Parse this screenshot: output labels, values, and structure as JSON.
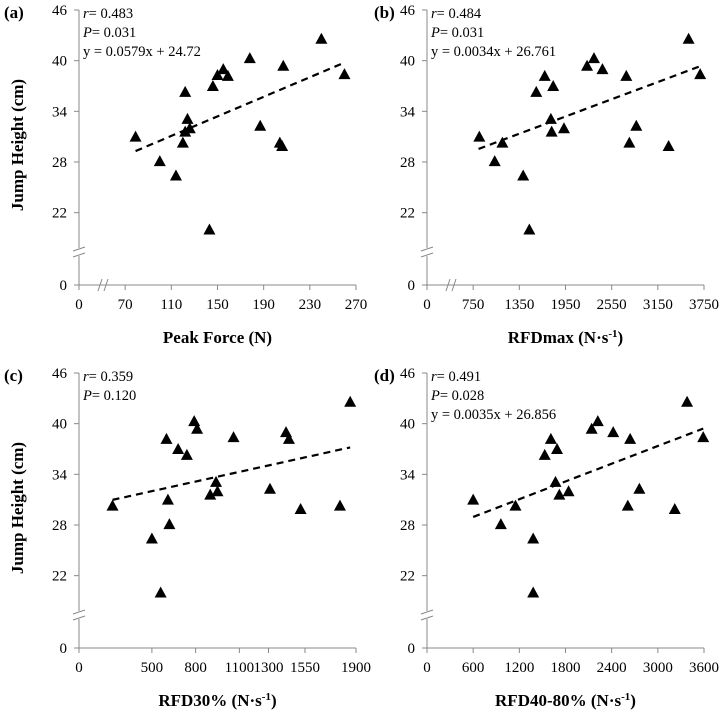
{
  "figure": {
    "ylabel": "Jump Height (cm)"
  },
  "chart_data": [
    {
      "type": "scatter",
      "panel": "(a)",
      "xlabel": "Peak Force (N)",
      "xlabel_sup": "",
      "xlabel_tail": "",
      "xlim": [
        0,
        270
      ],
      "xticks": [
        0,
        70,
        110,
        150,
        190,
        230,
        270
      ],
      "axis_break_after": 0,
      "ylim": [
        0,
        46
      ],
      "yticks": [
        0,
        22,
        28,
        34,
        40,
        46
      ],
      "y_break_between": [
        0,
        19
      ],
      "stats": {
        "r": "= 0.483",
        "p": "= 0.031",
        "eq": "y = 0.0579x + 24.72"
      },
      "fit": {
        "slope": 0.0579,
        "intercept": 24.72,
        "x_range": [
          79,
          260
        ]
      },
      "points": [
        {
          "x": 79,
          "y": 31
        },
        {
          "x": 100,
          "y": 28.1
        },
        {
          "x": 114,
          "y": 26.4
        },
        {
          "x": 120,
          "y": 30.3
        },
        {
          "x": 122,
          "y": 31.6
        },
        {
          "x": 122,
          "y": 36.3
        },
        {
          "x": 124,
          "y": 33.1
        },
        {
          "x": 126,
          "y": 32
        },
        {
          "x": 143,
          "y": 20
        },
        {
          "x": 146,
          "y": 37
        },
        {
          "x": 150,
          "y": 38.3
        },
        {
          "x": 155,
          "y": 39
        },
        {
          "x": 159,
          "y": 38.2
        },
        {
          "x": 178,
          "y": 40.3
        },
        {
          "x": 187,
          "y": 32.3
        },
        {
          "x": 204,
          "y": 30.3
        },
        {
          "x": 206,
          "y": 29.9
        },
        {
          "x": 207,
          "y": 39.4
        },
        {
          "x": 240,
          "y": 42.6
        },
        {
          "x": 260,
          "y": 38.4
        }
      ]
    },
    {
      "type": "scatter",
      "panel": "(b)",
      "xlabel": "RFDmax (N·s",
      "xlabel_sup": "-1",
      "xlabel_tail": ")",
      "xlim": [
        0,
        3750
      ],
      "xticks": [
        0,
        750,
        1350,
        1950,
        2550,
        3150,
        3750
      ],
      "axis_break_after": 0,
      "ylim": [
        0,
        46
      ],
      "yticks": [
        0,
        22,
        28,
        34,
        40,
        46
      ],
      "y_break_between": [
        0,
        19
      ],
      "stats": {
        "r": "= 0.484",
        "p": "= 0.031",
        "eq": "y = 0.0034x + 26.761"
      },
      "fit": {
        "slope": 0.0034,
        "intercept": 26.761,
        "x_range": [
          820,
          3700
        ]
      },
      "points": [
        {
          "x": 830,
          "y": 31
        },
        {
          "x": 1030,
          "y": 28.1
        },
        {
          "x": 1130,
          "y": 30.3
        },
        {
          "x": 1400,
          "y": 26.4
        },
        {
          "x": 1480,
          "y": 20
        },
        {
          "x": 1570,
          "y": 36.3
        },
        {
          "x": 1680,
          "y": 38.2
        },
        {
          "x": 1760,
          "y": 33.1
        },
        {
          "x": 1770,
          "y": 31.6
        },
        {
          "x": 1790,
          "y": 37
        },
        {
          "x": 1930,
          "y": 32
        },
        {
          "x": 2230,
          "y": 39.4
        },
        {
          "x": 2320,
          "y": 40.3
        },
        {
          "x": 2430,
          "y": 39
        },
        {
          "x": 2740,
          "y": 38.2
        },
        {
          "x": 2780,
          "y": 30.3
        },
        {
          "x": 2870,
          "y": 32.3
        },
        {
          "x": 3290,
          "y": 29.9
        },
        {
          "x": 3550,
          "y": 42.6
        },
        {
          "x": 3700,
          "y": 38.4
        }
      ]
    },
    {
      "type": "scatter",
      "panel": "(c)",
      "xlabel": "RFD30% (N·s",
      "xlabel_sup": "-1",
      "xlabel_tail": ")",
      "xlim": [
        0,
        1900
      ],
      "xticks": [
        0,
        500,
        800,
        1100,
        1300,
        1550,
        1900
      ],
      "axis_break_after": null,
      "ylim": [
        0,
        46
      ],
      "yticks": [
        0,
        22,
        28,
        34,
        40,
        46
      ],
      "y_break_between": [
        0,
        19
      ],
      "stats": {
        "r": "= 0.359",
        "p": "= 0.120",
        "eq": ""
      },
      "fit": {
        "slope": 0.00381,
        "intercept": 30.1,
        "x_range": [
          230,
          1860
        ]
      },
      "points": [
        {
          "x": 230,
          "y": 30.3
        },
        {
          "x": 500,
          "y": 26.4
        },
        {
          "x": 560,
          "y": 20
        },
        {
          "x": 600,
          "y": 38.2
        },
        {
          "x": 610,
          "y": 31
        },
        {
          "x": 620,
          "y": 28.1
        },
        {
          "x": 680,
          "y": 37
        },
        {
          "x": 740,
          "y": 36.3
        },
        {
          "x": 790,
          "y": 40.3
        },
        {
          "x": 810,
          "y": 39.4
        },
        {
          "x": 900,
          "y": 31.6
        },
        {
          "x": 940,
          "y": 33.1
        },
        {
          "x": 950,
          "y": 32
        },
        {
          "x": 1060,
          "y": 38.4
        },
        {
          "x": 1310,
          "y": 32.3
        },
        {
          "x": 1420,
          "y": 39
        },
        {
          "x": 1440,
          "y": 38.2
        },
        {
          "x": 1520,
          "y": 29.9
        },
        {
          "x": 1790,
          "y": 30.3
        },
        {
          "x": 1860,
          "y": 42.6
        }
      ]
    },
    {
      "type": "scatter",
      "panel": "(d)",
      "xlabel": "RFD40-80% (N·s",
      "xlabel_sup": "-1",
      "xlabel_tail": ")",
      "xlim": [
        0,
        3600
      ],
      "xticks": [
        0,
        600,
        1200,
        1800,
        2400,
        3000,
        3600
      ],
      "axis_break_after": null,
      "ylim": [
        0,
        46
      ],
      "yticks": [
        0,
        22,
        28,
        34,
        40,
        46
      ],
      "y_break_between": [
        0,
        19
      ],
      "stats": {
        "r": "= 0.491",
        "p": "= 0.028",
        "eq": "y = 0.0035x + 26.856"
      },
      "fit": {
        "slope": 0.0035,
        "intercept": 26.856,
        "x_range": [
          600,
          3590
        ]
      },
      "points": [
        {
          "x": 600,
          "y": 31
        },
        {
          "x": 960,
          "y": 28.1
        },
        {
          "x": 1150,
          "y": 30.3
        },
        {
          "x": 1380,
          "y": 26.4
        },
        {
          "x": 1380,
          "y": 20
        },
        {
          "x": 1530,
          "y": 36.3
        },
        {
          "x": 1610,
          "y": 38.2
        },
        {
          "x": 1670,
          "y": 33.1
        },
        {
          "x": 1690,
          "y": 37
        },
        {
          "x": 1720,
          "y": 31.6
        },
        {
          "x": 1840,
          "y": 32
        },
        {
          "x": 2140,
          "y": 39.4
        },
        {
          "x": 2220,
          "y": 40.3
        },
        {
          "x": 2420,
          "y": 39
        },
        {
          "x": 2610,
          "y": 30.3
        },
        {
          "x": 2640,
          "y": 38.2
        },
        {
          "x": 2760,
          "y": 32.3
        },
        {
          "x": 3220,
          "y": 29.9
        },
        {
          "x": 3380,
          "y": 42.6
        },
        {
          "x": 3590,
          "y": 38.4
        }
      ]
    }
  ]
}
